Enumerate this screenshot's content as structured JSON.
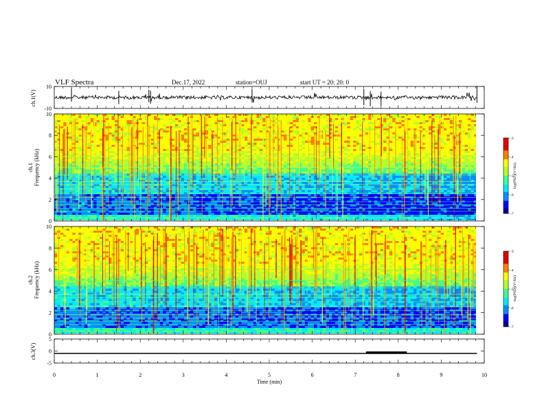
{
  "header": {
    "title": "VLF Spectra",
    "date": "Dec.17, 2022",
    "station": "station=OUJ",
    "start": "start  UT =   20: 20: 0"
  },
  "chart_data": {
    "type": "heatmap",
    "x_axis": {
      "label": "Time  (min)",
      "range": [
        0,
        10
      ],
      "ticks": [
        "0",
        "1",
        "2",
        "3",
        "4",
        "5",
        "6",
        "7",
        "8",
        "9",
        "10"
      ]
    },
    "colorbar": {
      "label": "log(PSD)(V²/Hz)",
      "range": [
        -7,
        -3
      ],
      "ticks": [
        "-3",
        "-4",
        "-5",
        "-6",
        "-7"
      ],
      "colors": [
        "#00008c",
        "#0000ff",
        "#0090ff",
        "#00e8ff",
        "#40ff90",
        "#b0ff30",
        "#ffff00",
        "#ff8000",
        "#e00000",
        "#ffffff"
      ]
    },
    "panels": [
      {
        "id": "ch1-waveform",
        "type": "line",
        "ylabel": "ch.1(V)",
        "ylim": [
          -10,
          10
        ],
        "yticks": [
          "10",
          "-10"
        ],
        "baseline_v": 0,
        "data_end_min": 9.83
      },
      {
        "id": "ch1-spectrogram",
        "type": "heatmap",
        "ylabel_channel": "ch.1",
        "ylabel": "Frequency  (kHz)",
        "ylim": [
          0,
          10
        ],
        "yticks": [
          "10",
          "8",
          "6",
          "4",
          "2",
          "0"
        ],
        "data_end_min": 9.83
      },
      {
        "id": "ch2-spectrogram",
        "type": "heatmap",
        "ylabel_channel": "ch.2",
        "ylabel": "Frequency  (kHz)",
        "ylim": [
          0,
          10
        ],
        "yticks": [
          "10",
          "8",
          "6",
          "4",
          "2",
          "0"
        ],
        "data_end_min": 9.83
      },
      {
        "id": "ch3-signal",
        "type": "line",
        "ylabel": "ch.3(V)",
        "ylim": [
          -5,
          5
        ],
        "yticks": [
          "5",
          "0",
          "-5"
        ],
        "level_v": -1.0,
        "pulse": {
          "x_start_min": 7.25,
          "x_end_min": 8.2,
          "level_v": -0.6
        },
        "data_end_min": 9.83
      }
    ]
  }
}
